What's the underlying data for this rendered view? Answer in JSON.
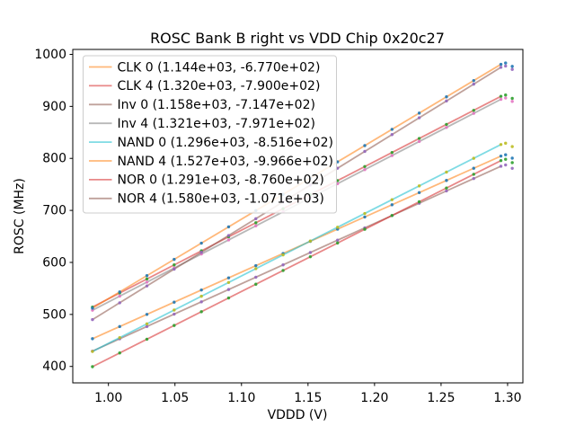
{
  "window": {
    "background": "#ffffff"
  },
  "chart_data": {
    "type": "scatter",
    "title": "ROSC Bank B right vs VDD Chip 0x20c27",
    "xlabel": "VDDD (V)",
    "ylabel": "ROSC (MHz)",
    "grid": false,
    "legend_position": "upper left",
    "xlim": [
      0.9732,
      1.3115
    ],
    "ylim": [
      368.4,
      1009.5
    ],
    "x_ticks": [
      {
        "v": 1.0,
        "label": "1.00"
      },
      {
        "v": 1.05,
        "label": "1.05"
      },
      {
        "v": 1.1,
        "label": "1.10"
      },
      {
        "v": 1.15,
        "label": "1.15"
      },
      {
        "v": 1.2,
        "label": "1.20"
      },
      {
        "v": 1.25,
        "label": "1.25"
      },
      {
        "v": 1.3,
        "label": "1.30"
      }
    ],
    "y_ticks": [
      {
        "v": 400,
        "label": "400"
      },
      {
        "v": 500,
        "label": "500"
      },
      {
        "v": 600,
        "label": "600"
      },
      {
        "v": 700,
        "label": "700"
      },
      {
        "v": 800,
        "label": "800"
      },
      {
        "v": 900,
        "label": "900"
      },
      {
        "v": 1000,
        "label": "1000"
      }
    ],
    "x_sweep": {
      "start": 0.988,
      "end": 1.295,
      "count": 16
    },
    "extra_points": [
      {
        "x": 1.2985,
        "offset_mhz": 2.5
      },
      {
        "x": 1.3035,
        "offset_mhz": -4.0
      }
    ],
    "line_alpha": 0.55,
    "series": [
      {
        "name": "CLK 0",
        "legend_label": "CLK 0 (1.144e+03, -6.770e+02)",
        "slope": 1144,
        "intercept": -677.0,
        "line_color": "#ff7f0e",
        "dot_color": "#1f77b4"
      },
      {
        "name": "CLK 4",
        "legend_label": "CLK 4 (1.320e+03, -7.900e+02)",
        "slope": 1320,
        "intercept": -790.0,
        "line_color": "#d62728",
        "dot_color": "#2ca02c"
      },
      {
        "name": "Inv 0",
        "legend_label": "Inv 0 (1.158e+03, -7.147e+02)",
        "slope": 1158,
        "intercept": -714.7,
        "line_color": "#8c564b",
        "dot_color": "#9467bd"
      },
      {
        "name": "Inv 4",
        "legend_label": "Inv 4 (1.321e+03, -7.971e+02)",
        "slope": 1321,
        "intercept": -797.1,
        "line_color": "#7f7f7f",
        "dot_color": "#e377c2"
      },
      {
        "name": "NAND 0",
        "legend_label": "NAND 0 (1.296e+03, -8.516e+02)",
        "slope": 1296,
        "intercept": -851.6,
        "line_color": "#17becf",
        "dot_color": "#bcbd22"
      },
      {
        "name": "NAND 4",
        "legend_label": "NAND 4 (1.527e+03, -9.966e+02)",
        "slope": 1527,
        "intercept": -996.6,
        "line_color": "#ff7f0e",
        "dot_color": "#1f77b4"
      },
      {
        "name": "NOR 0",
        "legend_label": "NOR 0 (1.291e+03, -8.760e+02)",
        "slope": 1291,
        "intercept": -876.0,
        "line_color": "#d62728",
        "dot_color": "#2ca02c"
      },
      {
        "name": "NOR 4",
        "legend_label": "NOR 4 (1.580e+03, -1.071e+03)",
        "slope": 1580,
        "intercept": -1071.0,
        "line_color": "#8c564b",
        "dot_color": "#9467bd"
      }
    ]
  }
}
